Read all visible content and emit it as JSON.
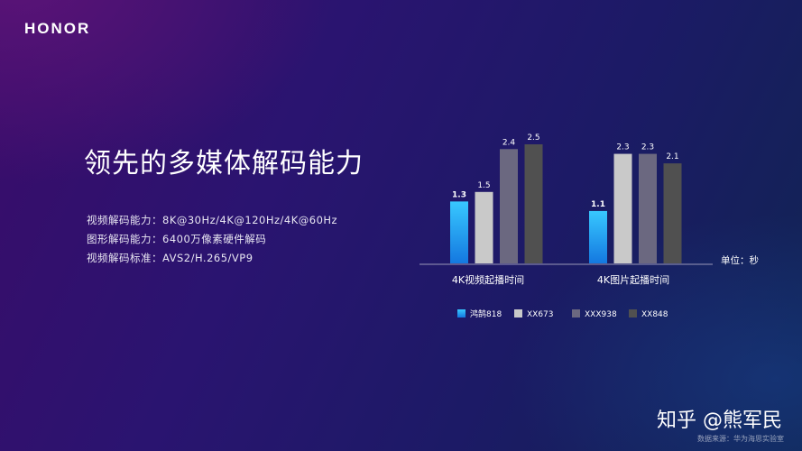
{
  "brand": "HONOR",
  "headline": "领先的多媒体解码能力",
  "specs": [
    "视频解码能力：8K@30Hz/4K@120Hz/4K@60Hz",
    "图形解码能力：6400万像素硬件解码",
    "视频解码标准：AVS2/H.265/VP9"
  ],
  "chart_data": {
    "type": "bar",
    "categories": [
      "4K视频起播时间",
      "4K图片起播时间"
    ],
    "series": [
      {
        "name": "鸿鹄818",
        "values": [
          1.3,
          1.1
        ],
        "color": "#1ea2f0"
      },
      {
        "name": "XX673",
        "values": [
          1.5,
          2.3
        ],
        "color": "#c9c9c9"
      },
      {
        "name": "XXX938",
        "values": [
          2.4,
          2.3
        ],
        "color": "#6b6880"
      },
      {
        "name": "XX848",
        "values": [
          2.5,
          2.1
        ],
        "color": "#505050"
      }
    ],
    "value_labels": [
      [
        "1.3",
        "1.1"
      ],
      [
        "1.5",
        "2.3"
      ],
      [
        "2.4",
        "2.3"
      ],
      [
        "2.5",
        "2.1"
      ]
    ],
    "unit_label": "单位：秒",
    "ylim": [
      0,
      2.5
    ],
    "grid": false,
    "legend_position": "bottom"
  },
  "watermark": "知乎 @熊军民",
  "source_note": "数据来源：华为海思实验室"
}
